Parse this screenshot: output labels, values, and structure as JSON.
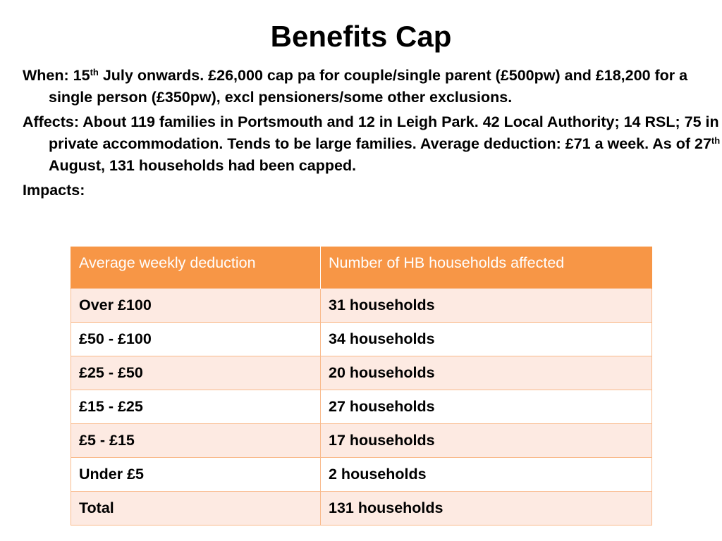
{
  "slide": {
    "title": "Benefits Cap",
    "paragraphs": [
      {
        "pre": "When: 15",
        "sup": "th",
        "post": " July onwards. £26,000 cap pa for couple/single parent (£500pw) and £18,200 for a single person (£350pw), excl pensioners/some other exclusions."
      },
      {
        "pre": "Affects: About 119 families in Portsmouth and 12 in Leigh Park. 42 Local Authority; 14 RSL; 75 in private accommodation. Tends to be large families. Average deduction: £71 a week. As of 27",
        "sup": "th",
        "post": " August, 131 households had been capped."
      },
      {
        "pre": "Impacts:",
        "sup": "",
        "post": ""
      }
    ]
  },
  "table": {
    "headers": [
      "Average weekly deduction",
      "Number of HB households affected"
    ],
    "rows": [
      [
        "Over £100",
        "31 households"
      ],
      [
        "£50 - £100",
        "34 households"
      ],
      [
        "£25 - £50",
        "20 households"
      ],
      [
        "£15 - £25",
        "27 households"
      ],
      [
        "£5 - £15",
        "17 households"
      ],
      [
        "Under £5",
        "2 households"
      ],
      [
        "Total",
        "131 households"
      ]
    ]
  },
  "colors": {
    "header_bg": "#f79646",
    "row_tint": "#fdeae2",
    "row_border": "#f9b98a"
  }
}
